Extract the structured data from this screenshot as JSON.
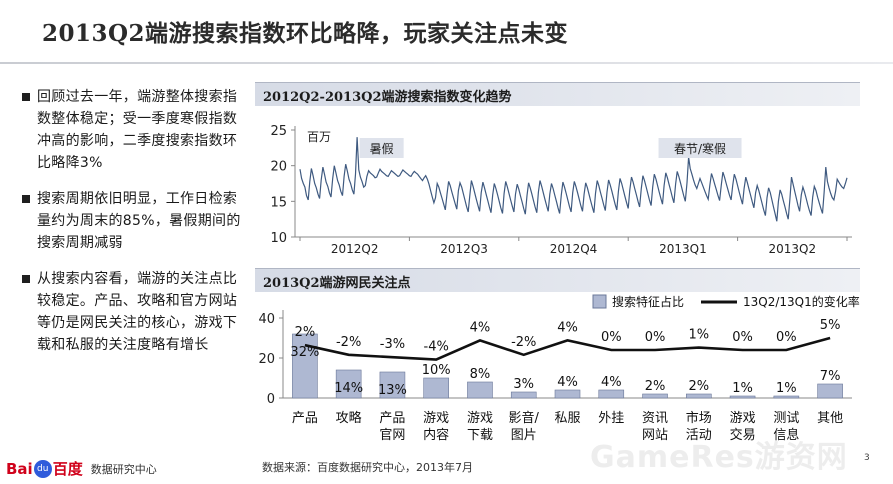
{
  "title": "2013Q2端游搜索指数环比略降，玩家关注点未变",
  "bullets": [
    "回顾过去一年，端游整体搜索指数整体稳定；受一季度寒假指数冲高的影响，二季度搜索指数环比略降3%",
    "搜索周期依旧明显，工作日检索量约为周末的85%，暑假期间的搜索周期减弱",
    "从搜索内容看，端游的关注点比较稳定。产品、攻略和官方网站等仍是网民关注的核心，游戏下载和私服的关注度略有增长"
  ],
  "panel1_title": "2012Q2-2013Q2端游搜索指数变化趋势",
  "panel2_title": "2013Q2端游网民关注点",
  "source": "数据来源：百度数据研究中心，2013年7月",
  "page_number": "3",
  "logo_bai": "Bai",
  "logo_du": "du",
  "logo_cn": "百度",
  "logo_sub": "数据研究中心",
  "watermark": "GameRes游资网",
  "colors": {
    "line": "#3f5a80",
    "bar": "#aeb8d2",
    "bar_stroke": "#6b7899",
    "trend": "#111111",
    "header": "#d6dbe6"
  },
  "chart_data": [
    {
      "type": "line",
      "title": "2012Q2-2013Q2端游搜索指数变化趋势",
      "unit_label": "百万",
      "yticks": [
        10,
        15,
        20,
        25
      ],
      "ylim": [
        10,
        25
      ],
      "xtick_labels": [
        "2012Q2",
        "2012Q3",
        "2012Q4",
        "2013Q1",
        "2013Q2"
      ],
      "annotations": [
        {
          "text": "暑假",
          "x_day": 50
        },
        {
          "text": "春节/寒假",
          "x_day": 245
        }
      ],
      "series": [
        {
          "values": [
            19.5,
            18.2,
            17.5,
            17.0,
            15.8,
            15.2,
            17.8,
            19.6,
            18.6,
            17.5,
            16.9,
            16.0,
            15.4,
            18.0,
            19.8,
            18.8,
            17.7,
            17.1,
            16.2,
            15.6,
            18.2,
            20.0,
            19.0,
            17.9,
            17.3,
            16.4,
            15.8,
            18.5,
            20.2,
            19.2,
            18.1,
            17.5,
            16.6,
            16.0,
            18.8,
            24.0,
            19.4,
            18.4,
            17.8,
            17.0,
            17.2,
            18.5,
            19.3,
            19.0,
            18.8,
            18.6,
            18.3,
            18.4,
            19.0,
            19.5,
            19.2,
            19.0,
            18.8,
            18.6,
            18.5,
            18.9,
            19.3,
            19.1,
            18.9,
            18.7,
            18.5,
            18.6,
            19.0,
            19.4,
            19.2,
            19.0,
            18.8,
            18.6,
            18.5,
            18.9,
            19.2,
            19.0,
            18.8,
            18.5,
            18.2,
            17.9,
            18.3,
            18.6,
            18.1,
            17.4,
            16.5,
            15.6,
            14.8,
            15.5,
            17.5,
            17.0,
            16.2,
            15.4,
            14.6,
            13.8,
            16.0,
            17.8,
            17.2,
            16.3,
            15.5,
            14.7,
            13.9,
            16.5,
            17.6,
            17.0,
            16.1,
            15.2,
            14.3,
            13.5,
            15.8,
            17.9,
            17.1,
            16.2,
            15.3,
            14.4,
            13.6,
            16.2,
            17.7,
            16.9,
            16.0,
            15.1,
            14.2,
            13.4,
            15.9,
            17.5,
            16.8,
            15.9,
            15.0,
            14.1,
            13.3,
            16.1,
            17.8,
            17.0,
            16.1,
            15.2,
            14.3,
            13.5,
            16.0,
            17.4,
            16.7,
            15.8,
            14.9,
            14.0,
            13.2,
            15.8,
            17.6,
            16.9,
            16.0,
            15.1,
            14.2,
            13.4,
            16.3,
            17.9,
            17.1,
            16.2,
            15.3,
            14.4,
            13.6,
            16.0,
            17.5,
            16.8,
            15.9,
            15.0,
            14.1,
            13.3,
            15.9,
            17.7,
            17.0,
            16.1,
            15.2,
            14.3,
            13.5,
            16.2,
            17.8,
            17.1,
            16.2,
            15.3,
            14.4,
            13.6,
            16.0,
            17.6,
            16.9,
            16.0,
            15.1,
            14.2,
            13.4,
            16.1,
            17.9,
            17.2,
            16.3,
            15.4,
            14.5,
            13.7,
            16.3,
            18.0,
            17.3,
            16.4,
            15.5,
            14.6,
            13.8,
            16.4,
            18.2,
            17.5,
            16.6,
            15.7,
            14.8,
            14.0,
            16.6,
            18.4,
            17.7,
            16.8,
            15.9,
            15.0,
            14.2,
            16.8,
            18.6,
            17.9,
            17.0,
            16.1,
            15.2,
            14.4,
            17.0,
            18.8,
            18.1,
            17.2,
            16.3,
            15.4,
            14.6,
            17.2,
            19.0,
            18.3,
            17.4,
            16.5,
            15.6,
            14.8,
            17.4,
            19.2,
            18.5,
            17.6,
            16.7,
            15.8,
            15.0,
            17.6,
            21.2,
            19.6,
            18.8,
            18.0,
            17.3,
            16.8,
            17.5,
            18.2,
            17.6,
            17.0,
            16.4,
            15.8,
            15.3,
            17.2,
            18.9,
            18.2,
            17.4,
            16.6,
            15.8,
            15.1,
            17.3,
            19.1,
            18.4,
            17.5,
            16.7,
            15.9,
            15.2,
            17.2,
            18.8,
            18.1,
            17.2,
            16.3,
            15.4,
            14.6,
            16.8,
            18.4,
            17.6,
            16.7,
            15.8,
            14.9,
            14.1,
            16.2,
            17.2,
            16.5,
            15.6,
            14.7,
            13.8,
            13.0,
            15.5,
            16.9,
            16.2,
            15.2,
            14.2,
            13.2,
            12.2,
            15.0,
            16.6,
            16.0,
            15.1,
            14.2,
            13.3,
            12.5,
            15.3,
            18.4,
            17.4,
            16.4,
            15.4,
            14.4,
            13.6,
            15.9,
            17.0,
            16.3,
            15.4,
            14.5,
            13.7,
            13.0,
            15.6,
            17.1,
            16.5,
            15.6,
            14.8,
            14.0,
            13.3,
            16.2,
            19.8,
            17.8,
            16.9,
            16.1,
            15.5,
            15.2,
            16.4,
            18.1,
            17.7,
            17.3,
            17.0,
            16.8,
            17.5,
            18.3
          ]
        }
      ]
    },
    {
      "type": "bar",
      "title": "2013Q2端游网民关注点",
      "categories": [
        "产品",
        "攻略",
        "产品官网",
        "游戏内容",
        "游戏下载",
        "影音/图片",
        "私服",
        "外挂",
        "资讯网站",
        "市场活动",
        "游戏交易",
        "测试信息",
        "其他"
      ],
      "category_display": [
        [
          "产品"
        ],
        [
          "攻略"
        ],
        [
          "产品",
          "官网"
        ],
        [
          "游戏",
          "内容"
        ],
        [
          "游戏",
          "下载"
        ],
        [
          "影音/",
          "图片"
        ],
        [
          "私服"
        ],
        [
          "外挂"
        ],
        [
          "资讯",
          "网站"
        ],
        [
          "市场",
          "活动"
        ],
        [
          "游戏",
          "交易"
        ],
        [
          "测试",
          "信息"
        ],
        [
          "其他"
        ]
      ],
      "yticks": [
        0,
        20,
        40
      ],
      "ylim": [
        0,
        40
      ],
      "series": [
        {
          "name": "搜索特征占比",
          "values": [
            32,
            14,
            13,
            10,
            8,
            3,
            4,
            4,
            2,
            2,
            1,
            1,
            7
          ],
          "labels": [
            "32%",
            "14%",
            "13%",
            "10%",
            "8%",
            "3%",
            "4%",
            "4%",
            "2%",
            "2%",
            "1%",
            "1%",
            "7%"
          ]
        },
        {
          "name": "13Q2/13Q1的变化率",
          "values": [
            2,
            -2,
            -3,
            -4,
            4,
            -2,
            4,
            0,
            0,
            1,
            0,
            0,
            5
          ],
          "labels": [
            "2%",
            "-2%",
            "-3%",
            "-4%",
            "4%",
            "-2%",
            "4%",
            "0%",
            "0%",
            "1%",
            "0%",
            "0%",
            "5%"
          ]
        }
      ],
      "legend_placement": "top-right"
    }
  ]
}
